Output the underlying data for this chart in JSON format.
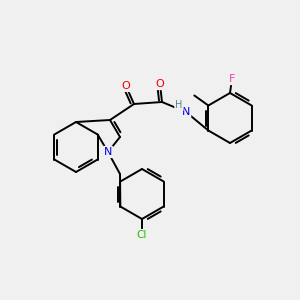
{
  "background_color": "#f0f0f0",
  "atom_colors": {
    "C": "#000000",
    "N": "#0000ee",
    "O": "#ee0000",
    "Cl": "#22bb00",
    "F": "#ee44aa",
    "H": "#558888"
  },
  "bond_color": "#000000",
  "bond_width": 1.4,
  "figsize": [
    3.0,
    3.0
  ],
  "dpi": 100
}
